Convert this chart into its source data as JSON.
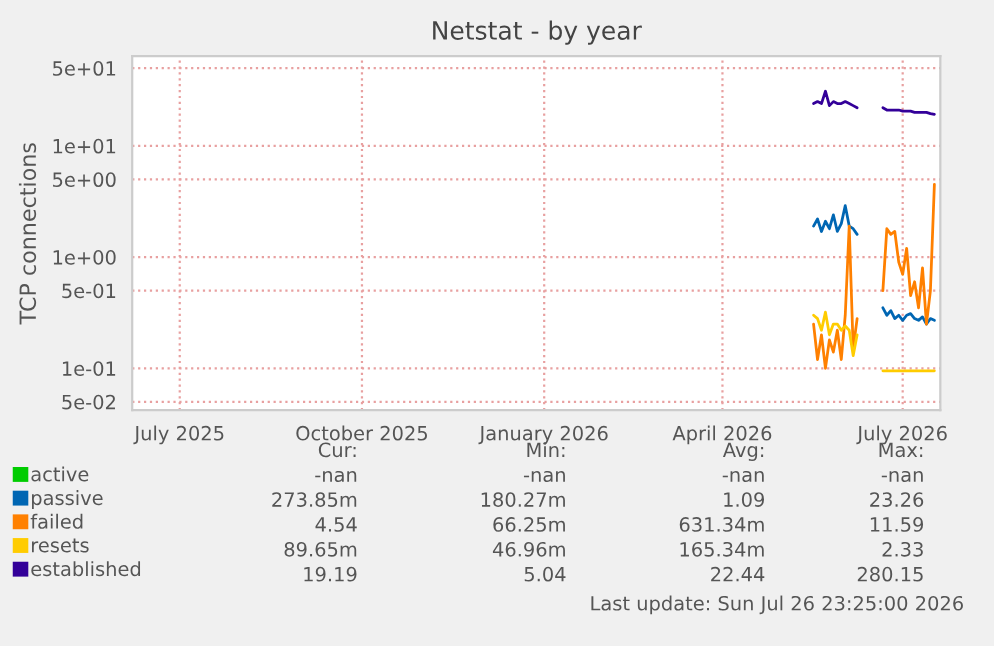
{
  "chart_data": {
    "type": "line",
    "title": "Netstat - by year",
    "ylabel": "TCP connections",
    "log": true,
    "grid": true,
    "legend": "bottom left",
    "x": [
      "2026-05-17",
      "2026-05-19",
      "2026-05-21",
      "2026-05-23",
      "2026-05-25",
      "2026-05-27",
      "2026-05-29",
      "2026-05-31",
      "2026-06-02",
      "2026-06-04",
      "2026-06-06",
      "2026-06-08",
      "2026-06-15",
      "2026-06-21",
      "2026-06-23",
      "2026-06-25",
      "2026-06-27",
      "2026-06-29",
      "2026-07-01",
      "2026-07-03",
      "2026-07-05",
      "2026-07-07",
      "2026-07-09",
      "2026-07-11",
      "2026-07-13",
      "2026-07-15",
      "2026-07-17"
    ],
    "xlim": [
      "2025-06-07",
      "2026-07-20"
    ],
    "xticks": [
      {
        "value": "2025-07-01",
        "label": "July 2025"
      },
      {
        "value": "2025-10-01",
        "label": "October 2025"
      },
      {
        "value": "2026-01-01",
        "label": "January 2026"
      },
      {
        "value": "2026-04-01",
        "label": "April 2026"
      },
      {
        "value": "2026-07-01",
        "label": "July 2026"
      }
    ],
    "ylim": [
      0.042,
      64
    ],
    "yticks": [
      {
        "value": 50,
        "label": "5e+01"
      },
      {
        "value": 10,
        "label": "1e+01"
      },
      {
        "value": 5,
        "label": "5e+00"
      },
      {
        "value": 1,
        "label": "1e+00"
      },
      {
        "value": 0.5,
        "label": "5e-01"
      },
      {
        "value": 0.1,
        "label": "1e-01"
      },
      {
        "value": 0.05,
        "label": "5e-02"
      }
    ],
    "series": [
      {
        "name": "active",
        "color": "#00cc00",
        "values": [
          null,
          null,
          null,
          null,
          null,
          null,
          null,
          null,
          null,
          null,
          null,
          null,
          null,
          null,
          null,
          null,
          null,
          null,
          null,
          null,
          null,
          null,
          null,
          null,
          null,
          null,
          null
        ]
      },
      {
        "name": "passive",
        "color": "#0066b3",
        "values": [
          1.9,
          2.2,
          1.7,
          2.1,
          1.8,
          2.4,
          1.7,
          2.0,
          2.9,
          1.9,
          1.8,
          1.6,
          null,
          0.35,
          0.3,
          0.33,
          0.28,
          0.3,
          0.27,
          0.3,
          0.31,
          0.28,
          0.27,
          0.29,
          0.25,
          0.28,
          0.27
        ]
      },
      {
        "name": "failed",
        "color": "#ff8000",
        "values": [
          0.25,
          0.12,
          0.2,
          0.1,
          0.18,
          0.14,
          0.22,
          0.12,
          0.3,
          1.9,
          0.15,
          0.28,
          null,
          0.5,
          1.8,
          1.6,
          1.7,
          0.9,
          0.7,
          1.2,
          0.45,
          0.6,
          0.35,
          0.8,
          0.25,
          0.5,
          4.5
        ]
      },
      {
        "name": "resets",
        "color": "#ffcc00",
        "values": [
          0.3,
          0.28,
          0.22,
          0.32,
          0.2,
          0.25,
          0.25,
          0.22,
          0.24,
          0.22,
          0.13,
          0.2,
          null,
          0.095,
          0.095,
          0.095,
          0.095,
          0.095,
          0.095,
          0.095,
          0.095,
          0.095,
          0.095,
          0.095,
          0.095,
          0.095,
          0.095
        ]
      },
      {
        "name": "established",
        "color": "#330099",
        "values": [
          24,
          25,
          24,
          31,
          23,
          25,
          24,
          24,
          25,
          24,
          23,
          22,
          null,
          22,
          21,
          21,
          21,
          21,
          20.5,
          20.5,
          20.5,
          20,
          20,
          20,
          20,
          19.5,
          19.2
        ]
      }
    ],
    "annotations": [
      "Cur:",
      "Min:",
      "Avg:",
      "Max:",
      "-nan",
      "-nan",
      "-nan",
      "-nan",
      "273.85m",
      "180.27m",
      "1.09",
      "23.26",
      "4.54",
      "66.25m",
      "631.34m",
      "11.59",
      "89.65m",
      "46.96m",
      "165.34m",
      "2.33",
      "19.19",
      "5.04",
      "22.44",
      "280.15",
      "Last update: Sun Jul 26 23:25:00 2026"
    ]
  }
}
